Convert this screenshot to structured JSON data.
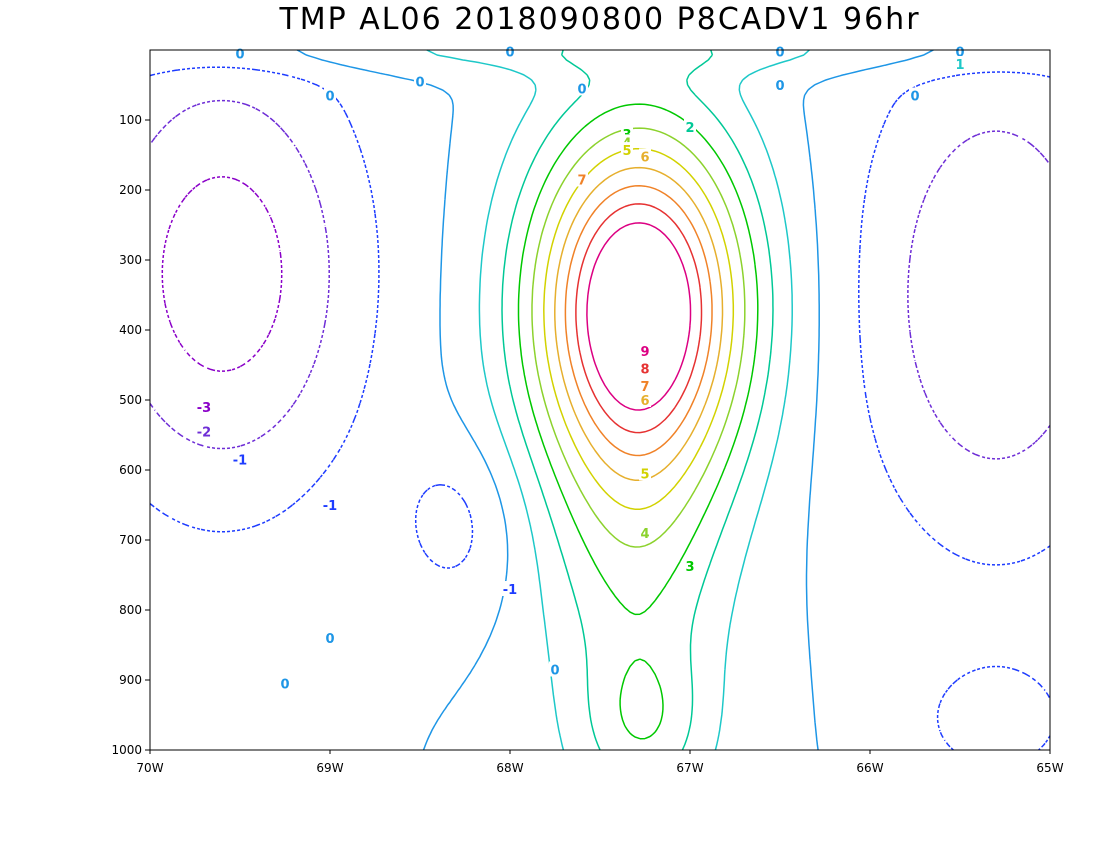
{
  "chart_data": {
    "type": "contour",
    "title": "TMP AL06 2018090800 P8CADV1 96hr",
    "x_ticks": [
      "70W",
      "69W",
      "68W",
      "67W",
      "66W",
      "65W"
    ],
    "x_range": [
      -70,
      -65
    ],
    "y_ticks": [
      "100",
      "200",
      "300",
      "400",
      "500",
      "600",
      "700",
      "800",
      "900",
      "1000"
    ],
    "y_range": [
      0,
      1000
    ],
    "y_inverted": true,
    "contour_levels": [
      -3,
      -2,
      -1,
      0,
      1,
      2,
      3,
      4,
      5,
      6,
      7,
      8,
      9
    ],
    "level_colors": {
      "-3": "#8a00c8",
      "-2": "#6e2dd6",
      "-1": "#1e3cff",
      "0": "#1e96e6",
      "1": "#1ec8c8",
      "2": "#00c896",
      "3": "#00c800",
      "4": "#8cd22d",
      "5": "#d2d200",
      "6": "#e6af2d",
      "7": "#f08228",
      "8": "#e63232",
      "9": "#dc0082"
    },
    "negative_dashed": true,
    "contour_labels": [
      {
        "text": "2",
        "x": -67.0,
        "y": 110
      },
      {
        "text": "3",
        "x": -67.35,
        "y": 120
      },
      {
        "text": "4",
        "x": -67.35,
        "y": 132
      },
      {
        "text": "5",
        "x": -67.35,
        "y": 143
      },
      {
        "text": "6",
        "x": -67.25,
        "y": 152
      },
      {
        "text": "7",
        "x": -67.6,
        "y": 185
      },
      {
        "text": "9",
        "x": -67.25,
        "y": 430
      },
      {
        "text": "8",
        "x": -67.25,
        "y": 455
      },
      {
        "text": "7",
        "x": -67.25,
        "y": 480
      },
      {
        "text": "6",
        "x": -67.25,
        "y": 500
      },
      {
        "text": "5",
        "x": -67.25,
        "y": 605
      },
      {
        "text": "4",
        "x": -67.25,
        "y": 690
      },
      {
        "text": "3",
        "x": -67.0,
        "y": 737
      },
      {
        "text": "-3",
        "x": -69.7,
        "y": 510
      },
      {
        "text": "-2",
        "x": -69.7,
        "y": 545
      },
      {
        "text": "-1",
        "x": -69.5,
        "y": 585
      },
      {
        "text": "-1",
        "x": -69.0,
        "y": 650
      },
      {
        "text": "-1",
        "x": -68.0,
        "y": 770
      },
      {
        "text": "0",
        "x": -69.0,
        "y": 840
      },
      {
        "text": "0",
        "x": -69.25,
        "y": 905
      },
      {
        "text": "0",
        "x": -67.75,
        "y": 885
      },
      {
        "text": "0",
        "x": -69.0,
        "y": 65
      },
      {
        "text": "0",
        "x": -68.5,
        "y": 45
      },
      {
        "text": "0",
        "x": -67.6,
        "y": 55
      },
      {
        "text": "0",
        "x": -66.5,
        "y": 50
      },
      {
        "text": "0",
        "x": -65.75,
        "y": 65
      },
      {
        "text": "0",
        "x": -69.5,
        "y": 5
      },
      {
        "text": "0",
        "x": -68.0,
        "y": 2
      },
      {
        "text": "0",
        "x": -66.5,
        "y": 2
      },
      {
        "text": "0",
        "x": -65.5,
        "y": 2
      },
      {
        "text": "1",
        "x": -65.5,
        "y": 20
      }
    ]
  }
}
